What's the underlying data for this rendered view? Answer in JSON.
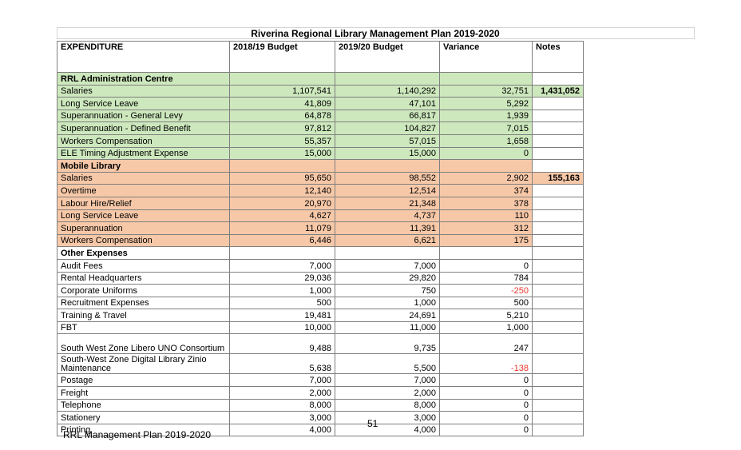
{
  "title": "Riverina Regional Library Management Plan 2019-2020",
  "headers": [
    "EXPENDITURE",
    "2018/19 Budget",
    "2019/20 Budget",
    "Variance",
    "Notes"
  ],
  "sections": [
    {
      "name": "RRL Administration Centre",
      "rows": [
        {
          "label": "Salaries",
          "b1819": "1,107,541",
          "b1920": "1,140,292",
          "variance": "32,751",
          "note": "1,431,052"
        },
        {
          "label": "Long Service Leave",
          "b1819": "41,809",
          "b1920": "47,101",
          "variance": "5,292",
          "note": ""
        },
        {
          "label": "Superannuation - General Levy",
          "b1819": "64,878",
          "b1920": "66,817",
          "variance": "1,939",
          "note": ""
        },
        {
          "label": "Superannuation - Defined Benefit",
          "b1819": "97,812",
          "b1920": "104,827",
          "variance": "7,015",
          "note": ""
        },
        {
          "label": "Workers Compensation",
          "b1819": "55,357",
          "b1920": "57,015",
          "variance": "1,658",
          "note": ""
        },
        {
          "label": "ELE Timing Adjustment Expense",
          "b1819": "15,000",
          "b1920": "15,000",
          "variance": "0",
          "note": ""
        }
      ]
    },
    {
      "name": "Mobile Library",
      "rows": [
        {
          "label": "Salaries",
          "b1819": "95,650",
          "b1920": "98,552",
          "variance": "2,902",
          "note": "155,163"
        },
        {
          "label": "Overtime",
          "b1819": "12,140",
          "b1920": "12,514",
          "variance": "374",
          "note": ""
        },
        {
          "label": "Labour Hire/Relief",
          "b1819": "20,970",
          "b1920": "21,348",
          "variance": "378",
          "note": ""
        },
        {
          "label": "Long Service Leave",
          "b1819": "4,627",
          "b1920": "4,737",
          "variance": "110",
          "note": ""
        },
        {
          "label": "Superannuation",
          "b1819": "11,079",
          "b1920": "11,391",
          "variance": "312",
          "note": ""
        },
        {
          "label": "Workers Compensation",
          "b1819": "6,446",
          "b1920": "6,621",
          "variance": "175",
          "note": ""
        }
      ]
    },
    {
      "name": "Other Expenses",
      "rows": [
        {
          "label": "Audit Fees",
          "b1819": "7,000",
          "b1920": "7,000",
          "variance": "0",
          "note": ""
        },
        {
          "label": "Rental Headquarters",
          "b1819": "29,036",
          "b1920": "29,820",
          "variance": "784",
          "note": ""
        },
        {
          "label": "Corporate Uniforms",
          "b1819": "1,000",
          "b1920": "750",
          "variance": "-250",
          "note": ""
        },
        {
          "label": "Recruitment Expenses",
          "b1819": "500",
          "b1920": "1,000",
          "variance": "500",
          "note": ""
        },
        {
          "label": "Training & Travel",
          "b1819": "19,481",
          "b1920": "24,691",
          "variance": "5,210",
          "note": ""
        },
        {
          "label": "FBT",
          "b1819": "10,000",
          "b1920": "11,000",
          "variance": "1,000",
          "note": ""
        },
        {
          "label": "South West Zone Libero UNO Consortium",
          "b1819": "9,488",
          "b1920": "9,735",
          "variance": "247",
          "note": ""
        },
        {
          "label": "South-West Zone Digital Library Zinio Maintenance",
          "b1819": "5,638",
          "b1920": "5,500",
          "variance": "-138",
          "note": ""
        },
        {
          "label": "Postage",
          "b1819": "7,000",
          "b1920": "7,000",
          "variance": "0",
          "note": ""
        },
        {
          "label": "Freight",
          "b1819": "2,000",
          "b1920": "2,000",
          "variance": "0",
          "note": ""
        },
        {
          "label": "Telephone",
          "b1819": "8,000",
          "b1920": "8,000",
          "variance": "0",
          "note": ""
        },
        {
          "label": "Stationery",
          "b1819": "3,000",
          "b1920": "3,000",
          "variance": "0",
          "note": ""
        },
        {
          "label": "Printing",
          "b1819": "4,000",
          "b1920": "4,000",
          "variance": "0",
          "note": ""
        }
      ]
    }
  ],
  "page_number": "51",
  "footer": "RRL Management Plan 2019-2020",
  "colors": {
    "admin_section": "#cde8bd",
    "mobile_section": "#f7c8a8",
    "negative": "#e8382c"
  }
}
